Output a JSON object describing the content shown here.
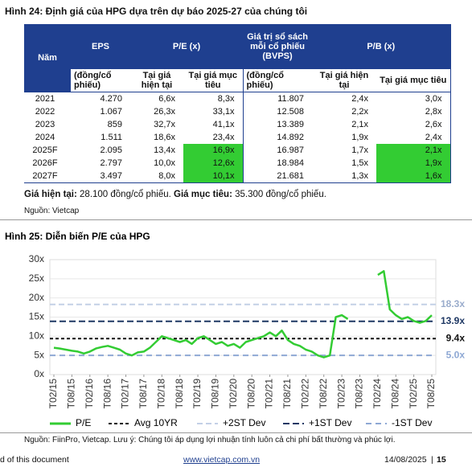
{
  "header": {
    "title": "Hình 24: Định giá của HPG dựa trên dự báo 2025-27 của chúng tôi"
  },
  "table": {
    "header_rows": [
      [
        "Năm",
        "EPS",
        "P/E (x)",
        "Giá trị sổ sách mỗi cổ phiếu (BVPS)",
        "P/B (x)"
      ],
      [
        "(đồng/cổ phiếu)",
        "Tại giá hiện tại",
        "Tại giá mục tiêu",
        "(đồng/cổ phiếu)",
        "Tại giá hiện tại",
        "Tại giá mục tiêu"
      ]
    ],
    "rows": [
      [
        "2021",
        "4.270",
        "6,6x",
        "8,3x",
        "11.807",
        "2,4x",
        "3,0x"
      ],
      [
        "2022",
        "1.067",
        "26,3x",
        "33,1x",
        "12.508",
        "2,2x",
        "2,8x"
      ],
      [
        "2023",
        "859",
        "32,7x",
        "41,1x",
        "13.389",
        "2,1x",
        "2,6x"
      ],
      [
        "2024",
        "1.511",
        "18,6x",
        "23,4x",
        "14.892",
        "1,9x",
        "2,4x"
      ],
      [
        "2025F",
        "2.095",
        "13,4x",
        "16,9x",
        "16.987",
        "1,7x",
        "2,1x"
      ],
      [
        "2026F",
        "2.797",
        "10,0x",
        "12,6x",
        "18.984",
        "1,5x",
        "1,9x"
      ],
      [
        "2027F",
        "3.497",
        "8,0x",
        "10,1x",
        "21.681",
        "1,3x",
        "1,6x"
      ]
    ]
  },
  "note": [
    {
      "text": "Giá hiện tại:",
      "bold": true
    },
    {
      "text": " 28.100 đồng/cổ phiếu. ",
      "bold": false
    },
    {
      "text": "Giá mục tiêu:",
      "bold": true
    },
    {
      "text": " 35.300 đồng/cổ phiếu.",
      "bold": false
    }
  ],
  "source": "Nguồn: Vietcap",
  "chart_data": {
    "type": "line",
    "title": "Hình 25: Diễn biến P/E của HPG",
    "categories": [
      "T02/15",
      null,
      null,
      "T08/15",
      null,
      null,
      "T02/16",
      null,
      null,
      "T08/16",
      null,
      null,
      "T02/17",
      null,
      null,
      "T08/17",
      null,
      null,
      "T02/18",
      null,
      null,
      "T08/18",
      null,
      null,
      "T02/19",
      null,
      null,
      "T08/19",
      null,
      null,
      "T02/20",
      null,
      null,
      "T08/20",
      null,
      null,
      "T02/21",
      null,
      null,
      "T08/21",
      null,
      null,
      "T02/22",
      null,
      null,
      "T08/22",
      null,
      null,
      "T02/23",
      null,
      null,
      "T08/23",
      null,
      null,
      "T02/24",
      null,
      null,
      "T08/24",
      null,
      null,
      "T02/25",
      null,
      null,
      "T08/25"
    ],
    "series": [
      {
        "name": "P/E",
        "color": "#33cc33",
        "values": [
          7.0,
          6.8,
          6.5,
          6.2,
          6.0,
          5.5,
          6.0,
          6.8,
          7.2,
          7.5,
          7.0,
          6.5,
          5.5,
          5.0,
          5.8,
          6.0,
          7.0,
          8.5,
          10.0,
          9.5,
          9.0,
          8.5,
          9.0,
          8.0,
          9.5,
          10.0,
          9.0,
          8.0,
          8.5,
          7.5,
          8.0,
          7.0,
          8.5,
          9.0,
          9.5,
          10.0,
          11.0,
          10.0,
          11.5,
          9.0,
          8.0,
          7.5,
          6.5,
          6.0,
          5.0,
          4.5,
          5.0,
          15.0,
          15.5,
          14.5,
          null,
          null,
          null,
          null,
          26.0,
          27.0,
          17.0,
          15.5,
          14.5,
          15.0,
          14.0,
          13.5,
          14.0,
          15.5
        ]
      }
    ],
    "reference_lines": [
      {
        "name": "Avg 10YR",
        "value": 9.4,
        "value_label": "9.4x",
        "color": "#111111"
      },
      {
        "name": "+2ST Dev",
        "value": 18.3,
        "value_label": "18.3x",
        "color": "#c3d0e6"
      },
      {
        "name": "+1ST Dev",
        "value": 13.9,
        "value_label": "13.9x",
        "color": "#1f3864"
      },
      {
        "name": "-1ST Dev",
        "value": 5.0,
        "value_label": "5.0x",
        "color": "#8ea8d4"
      }
    ],
    "ylim": [
      0,
      30
    ],
    "yticks": [
      {
        "value": 0,
        "label": "0x"
      },
      {
        "value": 5,
        "label": "5x"
      },
      {
        "value": 10,
        "label": "10x"
      },
      {
        "value": 15,
        "label": "15x"
      },
      {
        "value": 20,
        "label": "20x"
      },
      {
        "value": 25,
        "label": "25x"
      },
      {
        "value": 30,
        "label": "30x"
      }
    ],
    "grid": true,
    "legend": "bottom"
  },
  "chart_source": "Nguồn: FiinPro, Vietcap. Lưu ý: Chúng tôi áp dụng lợi nhuận tính luôn cả chi phí bất thường và phúc lợi.",
  "footer": {
    "left": "d of this document",
    "link": "www.vietcap.com.vn",
    "date": "14/08/2025",
    "separator": "|",
    "page": "15"
  }
}
